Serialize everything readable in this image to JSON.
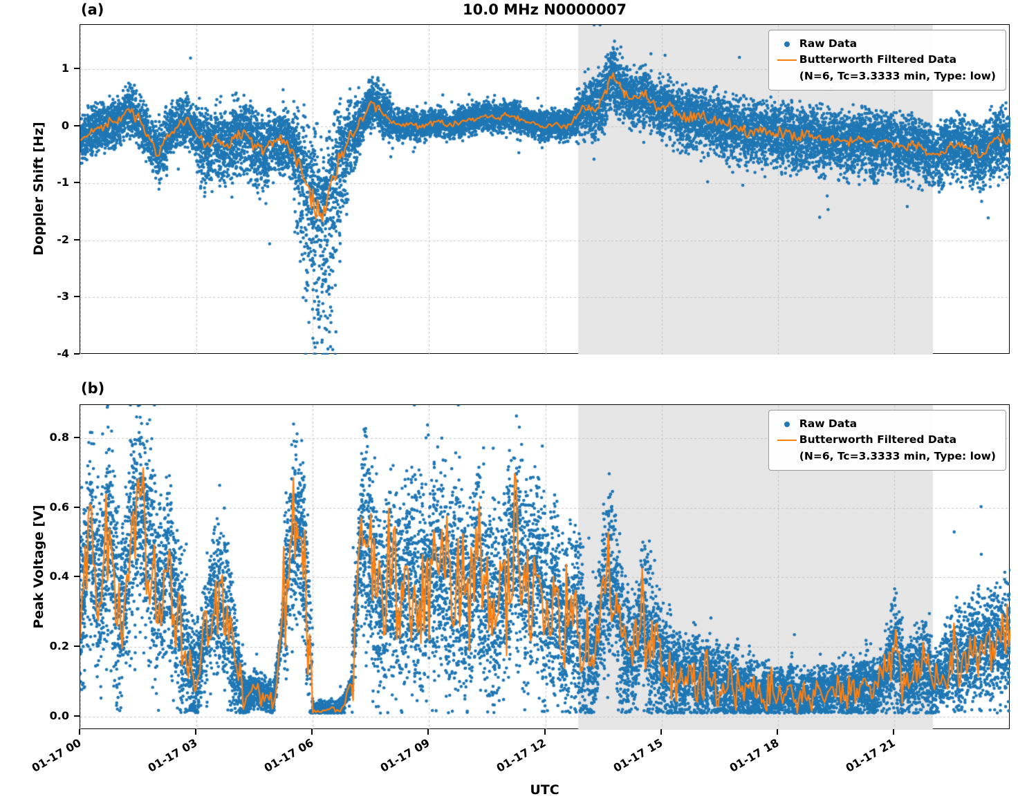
{
  "figure": {
    "xlabel": "UTC",
    "xtick_labels": [
      "01-17 00",
      "01-17 03",
      "01-17 06",
      "01-17 09",
      "01-17 12",
      "01-17 15",
      "01-17 18",
      "01-17 21"
    ],
    "xtick_hours": [
      0,
      3,
      6,
      9,
      12,
      15,
      18,
      21
    ],
    "x_range_hours": [
      0,
      24
    ],
    "colors": {
      "raw": "#1f77b4",
      "filtered": "#ff7f0e",
      "shade": "#e6e6e6",
      "grid": "#c4c4c4"
    },
    "legend": {
      "raw_label": "Raw Data",
      "filtered_label": "Butterworth Filtered Data",
      "filtered_sublabel": "(N=6, Tc=3.3333 min, Type: low)"
    }
  },
  "chart_data": [
    {
      "type": "scatter",
      "panel_label": "(a)",
      "title": "10.0 MHz N0000007",
      "ylabel": "Doppler Shift [Hz]",
      "ylim": [
        -4.0,
        1.78
      ],
      "ytick_values": [
        1,
        0,
        -1,
        -2,
        -3,
        -4
      ],
      "ytick_labels": [
        "1",
        "0",
        "-1",
        "-2",
        "-3",
        "-4"
      ],
      "shaded_region_hours": [
        12.85,
        22.0
      ],
      "x_hours_start": 0,
      "x_hours_step": 0.25,
      "filtered_y": [
        -0.25,
        -0.1,
        0.0,
        0.05,
        0.1,
        0.3,
        0.15,
        -0.15,
        -0.5,
        -0.15,
        0.05,
        0.1,
        -0.15,
        -0.35,
        -0.2,
        -0.3,
        -0.15,
        -0.1,
        -0.35,
        -0.4,
        -0.25,
        -0.2,
        -0.45,
        -0.9,
        -1.3,
        -1.6,
        -1.0,
        -0.5,
        -0.15,
        0.1,
        0.4,
        0.3,
        0.1,
        0.0,
        0.05,
        0.0,
        0.05,
        0.1,
        0.0,
        0.05,
        0.1,
        0.15,
        0.2,
        0.15,
        0.2,
        0.15,
        0.1,
        0.05,
        0.0,
        0.05,
        0.0,
        0.1,
        0.35,
        0.3,
        0.5,
        0.95,
        0.6,
        0.5,
        0.55,
        0.4,
        0.3,
        0.35,
        0.2,
        0.15,
        0.2,
        0.1,
        0.05,
        0.0,
        -0.05,
        -0.1,
        -0.05,
        -0.1,
        -0.15,
        -0.1,
        -0.2,
        -0.15,
        -0.2,
        -0.25,
        -0.2,
        -0.3,
        -0.25,
        -0.2,
        -0.3,
        -0.25,
        -0.3,
        -0.35,
        -0.3,
        -0.4,
        -0.5,
        -0.45,
        -0.35,
        -0.3,
        -0.4,
        -0.5,
        -0.3,
        -0.2,
        -0.3
      ],
      "raw_spread": [
        0.25,
        0.25,
        0.25,
        0.25,
        0.25,
        0.25,
        0.25,
        0.25,
        0.3,
        0.25,
        0.25,
        0.25,
        0.35,
        0.35,
        0.35,
        0.35,
        0.35,
        0.35,
        0.35,
        0.35,
        0.3,
        0.3,
        0.5,
        0.6,
        0.7,
        0.7,
        0.6,
        0.4,
        0.3,
        0.25,
        0.25,
        0.25,
        0.15,
        0.15,
        0.15,
        0.15,
        0.15,
        0.15,
        0.15,
        0.15,
        0.15,
        0.15,
        0.15,
        0.15,
        0.15,
        0.15,
        0.15,
        0.15,
        0.15,
        0.15,
        0.15,
        0.2,
        0.3,
        0.35,
        0.35,
        0.35,
        0.3,
        0.3,
        0.3,
        0.3,
        0.3,
        0.3,
        0.3,
        0.3,
        0.3,
        0.3,
        0.3,
        0.3,
        0.3,
        0.3,
        0.3,
        0.3,
        0.3,
        0.3,
        0.3,
        0.3,
        0.3,
        0.3,
        0.3,
        0.3,
        0.3,
        0.3,
        0.3,
        0.3,
        0.3,
        0.3,
        0.3,
        0.3,
        0.3,
        0.3,
        0.3,
        0.3,
        0.3,
        0.3,
        0.3,
        0.3,
        0.3
      ],
      "raw_down_mult": [
        1,
        1,
        1,
        1,
        1,
        1,
        1,
        1,
        1.2,
        1,
        1,
        1,
        1.3,
        1.3,
        1.3,
        1.3,
        1.3,
        1.3,
        1.3,
        1.3,
        1.2,
        1.2,
        1.6,
        2.0,
        2.2,
        2.5,
        2.2,
        1.5,
        1.2,
        1,
        1,
        1,
        1,
        1,
        1,
        1,
        1,
        1,
        1,
        1,
        1,
        1,
        1,
        1,
        1,
        1,
        1,
        1,
        1,
        1,
        1,
        1,
        1,
        1,
        1,
        1,
        1,
        1.2,
        1.2,
        1.2,
        1.2,
        1.2,
        1.2,
        1.2,
        1.2,
        1.2,
        1.2,
        1.2,
        1.2,
        1.2,
        1.2,
        1.2,
        1.2,
        1.2,
        1.2,
        1.2,
        1.2,
        1.2,
        1.2,
        1.2,
        1.2,
        1.2,
        1.2,
        1.2,
        1.2,
        1.2,
        1.2,
        1.2,
        1.2,
        1.2,
        1.2,
        1.2,
        1.2,
        1.2,
        1.2,
        1.2,
        1.2
      ],
      "line_jitter": 0.35,
      "points_per_hour": 600,
      "seed": 20
    },
    {
      "type": "scatter",
      "panel_label": "(b)",
      "title": "",
      "ylabel": "Peak Voltage [V]",
      "ylim": [
        -0.038,
        0.895
      ],
      "ytick_values": [
        0.0,
        0.2,
        0.4,
        0.6,
        0.8
      ],
      "ytick_labels": [
        "0.0",
        "0.2",
        "0.4",
        "0.6",
        "0.8"
      ],
      "shaded_region_hours": [
        12.85,
        22.0
      ],
      "x_hours_start": 0,
      "x_hours_step": 0.25,
      "clamp_min": 0.01,
      "filtered_y": [
        0.3,
        0.5,
        0.35,
        0.55,
        0.25,
        0.45,
        0.6,
        0.5,
        0.35,
        0.45,
        0.3,
        0.15,
        0.1,
        0.25,
        0.35,
        0.3,
        0.15,
        0.05,
        0.08,
        0.06,
        0.05,
        0.3,
        0.55,
        0.5,
        0.02,
        0.02,
        0.02,
        0.02,
        0.1,
        0.55,
        0.45,
        0.3,
        0.4,
        0.35,
        0.4,
        0.35,
        0.4,
        0.45,
        0.35,
        0.4,
        0.3,
        0.45,
        0.35,
        0.3,
        0.4,
        0.5,
        0.35,
        0.45,
        0.3,
        0.35,
        0.25,
        0.3,
        0.2,
        0.15,
        0.35,
        0.4,
        0.2,
        0.15,
        0.3,
        0.2,
        0.15,
        0.12,
        0.1,
        0.12,
        0.1,
        0.12,
        0.08,
        0.1,
        0.07,
        0.08,
        0.06,
        0.08,
        0.06,
        0.07,
        0.05,
        0.06,
        0.07,
        0.06,
        0.08,
        0.07,
        0.08,
        0.1,
        0.08,
        0.12,
        0.2,
        0.1,
        0.12,
        0.15,
        0.1,
        0.12,
        0.18,
        0.15,
        0.2,
        0.18,
        0.22,
        0.2,
        0.25
      ],
      "raw_spread": [
        0.15,
        0.18,
        0.18,
        0.18,
        0.15,
        0.18,
        0.18,
        0.18,
        0.15,
        0.15,
        0.15,
        0.1,
        0.08,
        0.12,
        0.15,
        0.12,
        0.08,
        0.03,
        0.03,
        0.03,
        0.03,
        0.15,
        0.15,
        0.15,
        0.015,
        0.015,
        0.015,
        0.015,
        0.1,
        0.18,
        0.18,
        0.15,
        0.18,
        0.18,
        0.18,
        0.18,
        0.18,
        0.18,
        0.18,
        0.18,
        0.15,
        0.18,
        0.18,
        0.15,
        0.18,
        0.18,
        0.18,
        0.18,
        0.15,
        0.15,
        0.15,
        0.15,
        0.12,
        0.1,
        0.15,
        0.15,
        0.12,
        0.1,
        0.15,
        0.12,
        0.1,
        0.08,
        0.07,
        0.08,
        0.07,
        0.08,
        0.06,
        0.07,
        0.05,
        0.06,
        0.05,
        0.05,
        0.04,
        0.05,
        0.04,
        0.04,
        0.05,
        0.04,
        0.05,
        0.05,
        0.05,
        0.06,
        0.05,
        0.07,
        0.1,
        0.06,
        0.07,
        0.08,
        0.06,
        0.07,
        0.09,
        0.08,
        0.1,
        0.09,
        0.1,
        0.1,
        0.12
      ],
      "line_jitter": 1.0,
      "points_per_hour": 600,
      "seed": 77
    }
  ]
}
